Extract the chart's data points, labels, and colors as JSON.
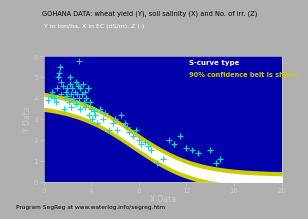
{
  "title": "GOHANA DATA: wheat yield (Y), soil salinity (X) and No. of irr. (Z)",
  "subtitle": "Y in ton/ha, X in EC (dS/m), Z (-)",
  "ylabel": "Y Data",
  "xlabel": "X Data",
  "legend_line1": "S-curve type",
  "legend_line2": "90% confidence belt is shown",
  "bg_color": "#0000BB",
  "outer_bg": "#B0B0B0",
  "plot_bg": "#0000AA",
  "axis_color": "#CCCCCC",
  "scatter_color": "#00DDDD",
  "curve_color": "#FFFFFF",
  "ci_inner_color": "#FFFFFF",
  "ci_outer_color": "#CCCC00",
  "footer": "Program SegReg at www.waterlog.info/segreg.htm",
  "xlim": [
    0.0,
    20.0
  ],
  "ylim": [
    0.0,
    6.0
  ],
  "xticks": [
    0.0,
    4.0,
    8.0,
    12.0,
    16.0,
    20.0
  ],
  "yticks": [
    0.0,
    1.0,
    2.0,
    3.0,
    4.0,
    5.0,
    6.0
  ],
  "curve_a": 4.05,
  "curve_b": 0.38,
  "curve_c": 7.5,
  "ci_inner": 0.22,
  "ci_outer": 0.42,
  "scatter_x": [
    0.4,
    0.6,
    0.7,
    0.9,
    1.0,
    1.1,
    1.2,
    1.3,
    1.4,
    1.5,
    1.5,
    1.6,
    1.7,
    1.8,
    1.9,
    2.0,
    2.0,
    2.1,
    2.2,
    2.2,
    2.3,
    2.3,
    2.4,
    2.5,
    2.5,
    2.6,
    2.7,
    2.7,
    2.8,
    2.9,
    3.0,
    3.0,
    3.1,
    3.1,
    3.2,
    3.3,
    3.4,
    3.5,
    3.5,
    3.6,
    3.7,
    3.8,
    3.9,
    4.0,
    4.1,
    4.2,
    4.3,
    4.5,
    4.7,
    5.0,
    5.2,
    5.5,
    5.8,
    6.0,
    6.2,
    6.5,
    6.8,
    7.0,
    7.2,
    7.5,
    7.8,
    8.0,
    8.2,
    8.5,
    8.8,
    9.0,
    9.5,
    10.0,
    10.5,
    11.0,
    11.5,
    12.0,
    12.5,
    13.0,
    14.0,
    14.5,
    14.8
  ],
  "scatter_y": [
    3.9,
    4.1,
    4.3,
    4.0,
    3.8,
    4.5,
    5.0,
    5.2,
    5.5,
    4.8,
    4.2,
    4.6,
    3.5,
    4.0,
    4.3,
    4.5,
    4.1,
    3.8,
    5.0,
    4.7,
    4.2,
    3.6,
    4.5,
    3.9,
    4.0,
    4.3,
    4.8,
    3.7,
    4.2,
    4.6,
    5.8,
    4.0,
    3.5,
    4.5,
    4.2,
    4.7,
    3.8,
    4.3,
    3.6,
    4.0,
    4.5,
    3.2,
    3.8,
    3.5,
    3.0,
    3.4,
    3.2,
    2.8,
    3.5,
    3.0,
    3.3,
    2.5,
    2.8,
    3.0,
    2.5,
    3.2,
    2.8,
    2.6,
    2.4,
    2.2,
    2.5,
    2.0,
    1.8,
    1.9,
    1.7,
    1.5,
    0.9,
    1.1,
    2.0,
    1.8,
    2.2,
    1.6,
    1.5,
    1.4,
    1.5,
    0.9,
    1.1
  ]
}
